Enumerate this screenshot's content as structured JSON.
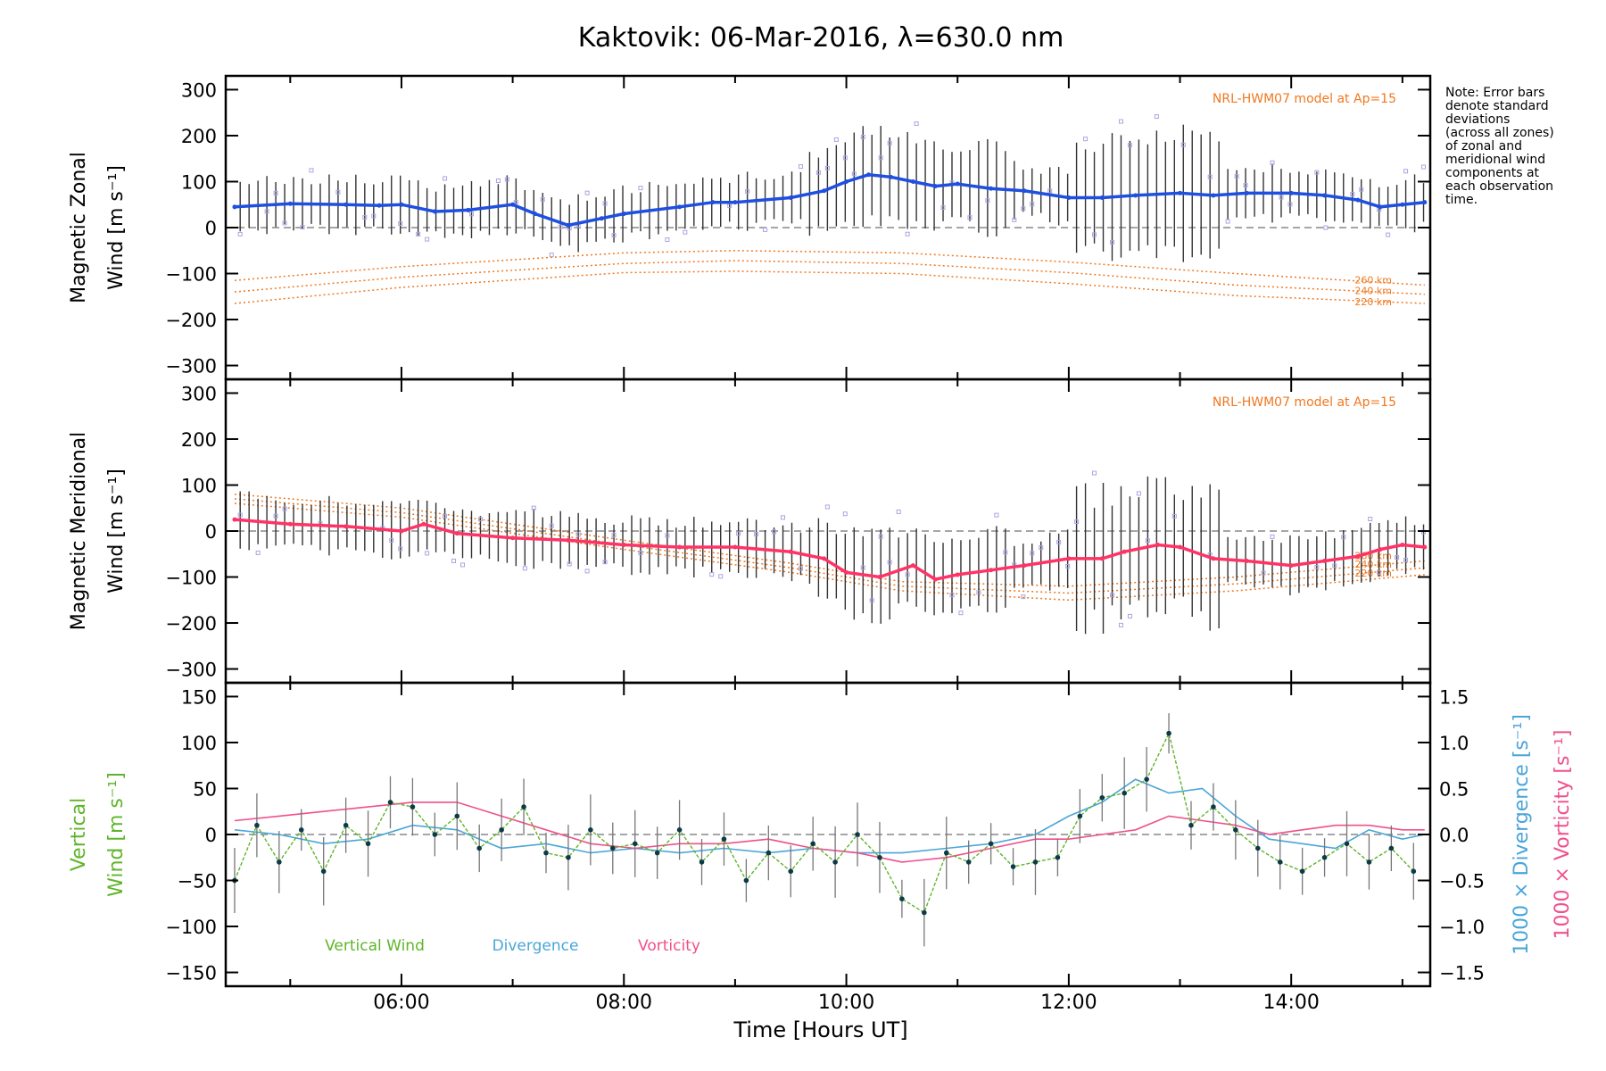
{
  "title": "Kaktovik: 06-Mar-2016, λ=630.0 nm",
  "note_lines": [
    "Note: Error bars",
    "denote standard",
    "deviations",
    "(across all zones)",
    "of zonal and",
    "meridional wind",
    "components at",
    "each observation",
    "time."
  ],
  "colors": {
    "zonal": "#1f4fe0",
    "meridional": "#ff3366",
    "vertical": "#5fb52a",
    "divergence": "#4aa6d8",
    "vorticity": "#f0508c",
    "model": "#f07820",
    "outlier": "#a9a6e0",
    "errorbar": "#333333",
    "zero": "#888888"
  },
  "chart_data": [
    {
      "type": "line",
      "panel": "zonal",
      "ylabel_line1": "Magnetic Zonal",
      "ylabel_line2": "Wind [m s⁻¹]",
      "ylim": [
        -330,
        330
      ],
      "yticks": [
        -300,
        -200,
        -100,
        0,
        100,
        200,
        300
      ],
      "model_label": "NRL-HWM07 model at Ap=15",
      "model_altitudes": [
        "260 km",
        "240 km",
        "220 km"
      ],
      "series": [
        {
          "x": [
            4.5,
            5.0,
            5.5,
            5.8,
            6.0,
            6.3,
            6.6,
            7.0,
            7.2,
            7.5,
            7.8,
            8.0,
            8.5,
            8.8,
            9.0,
            9.5,
            9.8,
            10.0,
            10.2,
            10.4,
            10.6,
            10.8,
            11.0,
            11.3,
            11.6,
            12.0,
            12.3,
            12.6,
            13.0,
            13.3,
            13.6,
            14.0,
            14.3,
            14.6,
            14.8,
            15.0,
            15.2
          ],
          "y": [
            45,
            52,
            50,
            48,
            50,
            35,
            38,
            50,
            30,
            5,
            20,
            30,
            45,
            55,
            55,
            65,
            80,
            100,
            115,
            110,
            100,
            90,
            95,
            85,
            80,
            65,
            65,
            70,
            75,
            70,
            75,
            75,
            70,
            60,
            45,
            50,
            55
          ]
        }
      ],
      "models": [
        {
          "x": [
            4.5,
            6.0,
            8.0,
            9.0,
            10.5,
            12.0,
            13.5,
            15.2
          ],
          "y": [
            -115,
            -85,
            -55,
            -50,
            -55,
            -75,
            -100,
            -125
          ]
        },
        {
          "x": [
            4.5,
            6.0,
            8.0,
            9.0,
            10.5,
            12.0,
            13.5,
            15.2
          ],
          "y": [
            -140,
            -108,
            -78,
            -72,
            -78,
            -98,
            -125,
            -145
          ]
        },
        {
          "x": [
            4.5,
            6.0,
            8.0,
            9.0,
            10.5,
            12.0,
            13.5,
            15.2
          ],
          "y": [
            -165,
            -130,
            -98,
            -95,
            -100,
            -122,
            -148,
            -165
          ]
        }
      ]
    },
    {
      "type": "line",
      "panel": "meridional",
      "ylabel_line1": "Magnetic Meridional",
      "ylabel_line2": "Wind [m s⁻¹]",
      "ylim": [
        -330,
        330
      ],
      "yticks": [
        -300,
        -200,
        -100,
        0,
        100,
        200,
        300
      ],
      "model_label": "NRL-HWM07 model at Ap=15",
      "model_altitudes": [
        "260 km",
        "240 km",
        "220 km"
      ],
      "series": [
        {
          "x": [
            4.5,
            5.0,
            5.5,
            6.0,
            6.2,
            6.5,
            7.0,
            7.5,
            8.0,
            8.5,
            9.0,
            9.5,
            9.8,
            10.0,
            10.3,
            10.6,
            10.8,
            11.0,
            11.3,
            11.6,
            12.0,
            12.3,
            12.5,
            12.8,
            13.0,
            13.3,
            13.6,
            14.0,
            14.3,
            14.6,
            14.8,
            15.0,
            15.2
          ],
          "y": [
            25,
            15,
            10,
            0,
            15,
            -5,
            -15,
            -20,
            -30,
            -35,
            -35,
            -45,
            -60,
            -90,
            -100,
            -75,
            -105,
            -95,
            -85,
            -75,
            -60,
            -60,
            -45,
            -30,
            -35,
            -60,
            -65,
            -75,
            -65,
            -55,
            -40,
            -30,
            -35
          ]
        }
      ],
      "models": [
        {
          "x": [
            4.5,
            6.0,
            8.0,
            9.5,
            10.5,
            12.0,
            13.5,
            15.2
          ],
          "y": [
            80,
            50,
            -20,
            -70,
            -110,
            -120,
            -100,
            -65
          ]
        },
        {
          "x": [
            4.5,
            6.0,
            8.0,
            9.5,
            10.5,
            12.0,
            13.5,
            15.2
          ],
          "y": [
            70,
            40,
            -30,
            -80,
            -120,
            -135,
            -115,
            -80
          ]
        },
        {
          "x": [
            4.5,
            6.0,
            8.0,
            9.5,
            10.5,
            12.0,
            13.5,
            15.2
          ],
          "y": [
            60,
            30,
            -40,
            -90,
            -130,
            -150,
            -130,
            -95
          ]
        }
      ]
    },
    {
      "type": "line",
      "panel": "vertical",
      "ylabel_line1": "Vertical",
      "ylabel_line2": "Wind [m s⁻¹]",
      "ylim": [
        -165,
        165
      ],
      "yticks": [
        -150,
        -100,
        -50,
        0,
        50,
        100,
        150
      ],
      "y2label_div": "1000 × Divergence [s⁻¹]",
      "y2label_vor": "1000 × Vorticity [s⁻¹]",
      "y2lim": [
        -1.65,
        1.65
      ],
      "y2ticks": [
        -1.5,
        -1.0,
        -0.5,
        0.0,
        0.5,
        1.0,
        1.5
      ],
      "y2tick_labels": [
        "−1.5",
        "−1.0",
        "−0.5",
        "0.0",
        "0.5",
        "1.0",
        "1.5"
      ],
      "legend": [
        "Vertical Wind",
        "Divergence",
        "Vorticity"
      ],
      "series": [
        {
          "name": "Vertical Wind",
          "x": [
            4.5,
            4.7,
            4.9,
            5.1,
            5.3,
            5.5,
            5.7,
            5.9,
            6.1,
            6.3,
            6.5,
            6.7,
            6.9,
            7.1,
            7.3,
            7.5,
            7.7,
            7.9,
            8.1,
            8.3,
            8.5,
            8.7,
            8.9,
            9.1,
            9.3,
            9.5,
            9.7,
            9.9,
            10.1,
            10.3,
            10.5,
            10.7,
            10.9,
            11.1,
            11.3,
            11.5,
            11.7,
            11.9,
            12.1,
            12.3,
            12.5,
            12.7,
            12.9,
            13.1,
            13.3,
            13.5,
            13.7,
            13.9,
            14.1,
            14.3,
            14.5,
            14.7,
            14.9,
            15.1
          ],
          "y": [
            -50,
            10,
            -30,
            5,
            -40,
            10,
            -10,
            35,
            30,
            0,
            20,
            -15,
            5,
            30,
            -20,
            -25,
            5,
            -15,
            -10,
            -20,
            5,
            -30,
            -5,
            -50,
            -20,
            -40,
            -10,
            -30,
            0,
            -25,
            -70,
            -85,
            -20,
            -30,
            -10,
            -35,
            -30,
            -25,
            20,
            40,
            45,
            60,
            110,
            10,
            30,
            5,
            -15,
            -30,
            -40,
            -25,
            -10,
            -30,
            -15,
            -40
          ]
        },
        {
          "name": "Divergence",
          "x": [
            4.5,
            4.9,
            5.3,
            5.7,
            6.1,
            6.5,
            6.9,
            7.3,
            7.7,
            8.1,
            8.5,
            8.9,
            9.3,
            9.7,
            10.1,
            10.5,
            10.9,
            11.3,
            11.7,
            12.0,
            12.3,
            12.6,
            12.9,
            13.2,
            13.5,
            13.8,
            14.1,
            14.4,
            14.7,
            15.0,
            15.2
          ],
          "y": [
            0.05,
            0.0,
            -0.1,
            -0.05,
            0.1,
            0.05,
            -0.15,
            -0.1,
            -0.2,
            -0.15,
            -0.2,
            -0.15,
            -0.2,
            -0.15,
            -0.2,
            -0.2,
            -0.15,
            -0.1,
            0.0,
            0.2,
            0.35,
            0.6,
            0.45,
            0.5,
            0.2,
            -0.05,
            -0.1,
            -0.15,
            0.05,
            -0.05,
            0.0
          ]
        },
        {
          "name": "Vorticity",
          "x": [
            4.5,
            4.9,
            5.3,
            5.7,
            6.1,
            6.5,
            6.9,
            7.3,
            7.7,
            8.1,
            8.5,
            8.9,
            9.3,
            9.7,
            10.1,
            10.5,
            10.9,
            11.3,
            11.7,
            12.0,
            12.3,
            12.6,
            12.9,
            13.2,
            13.5,
            13.8,
            14.1,
            14.4,
            14.7,
            15.0,
            15.2
          ],
          "y": [
            0.15,
            0.2,
            0.25,
            0.3,
            0.35,
            0.35,
            0.2,
            0.05,
            -0.1,
            -0.15,
            -0.1,
            -0.1,
            -0.05,
            -0.15,
            -0.2,
            -0.3,
            -0.25,
            -0.15,
            -0.05,
            -0.05,
            0.0,
            0.05,
            0.2,
            0.15,
            0.1,
            0.0,
            0.05,
            0.1,
            0.1,
            0.05,
            0.05
          ]
        }
      ]
    }
  ],
  "x_axis": {
    "label": "Time [Hours UT]",
    "xlim": [
      4.42,
      15.25
    ],
    "ticks": [
      6,
      8,
      10,
      12,
      14
    ],
    "tick_labels": [
      "06:00",
      "08:00",
      "10:00",
      "12:00",
      "14:00"
    ]
  }
}
